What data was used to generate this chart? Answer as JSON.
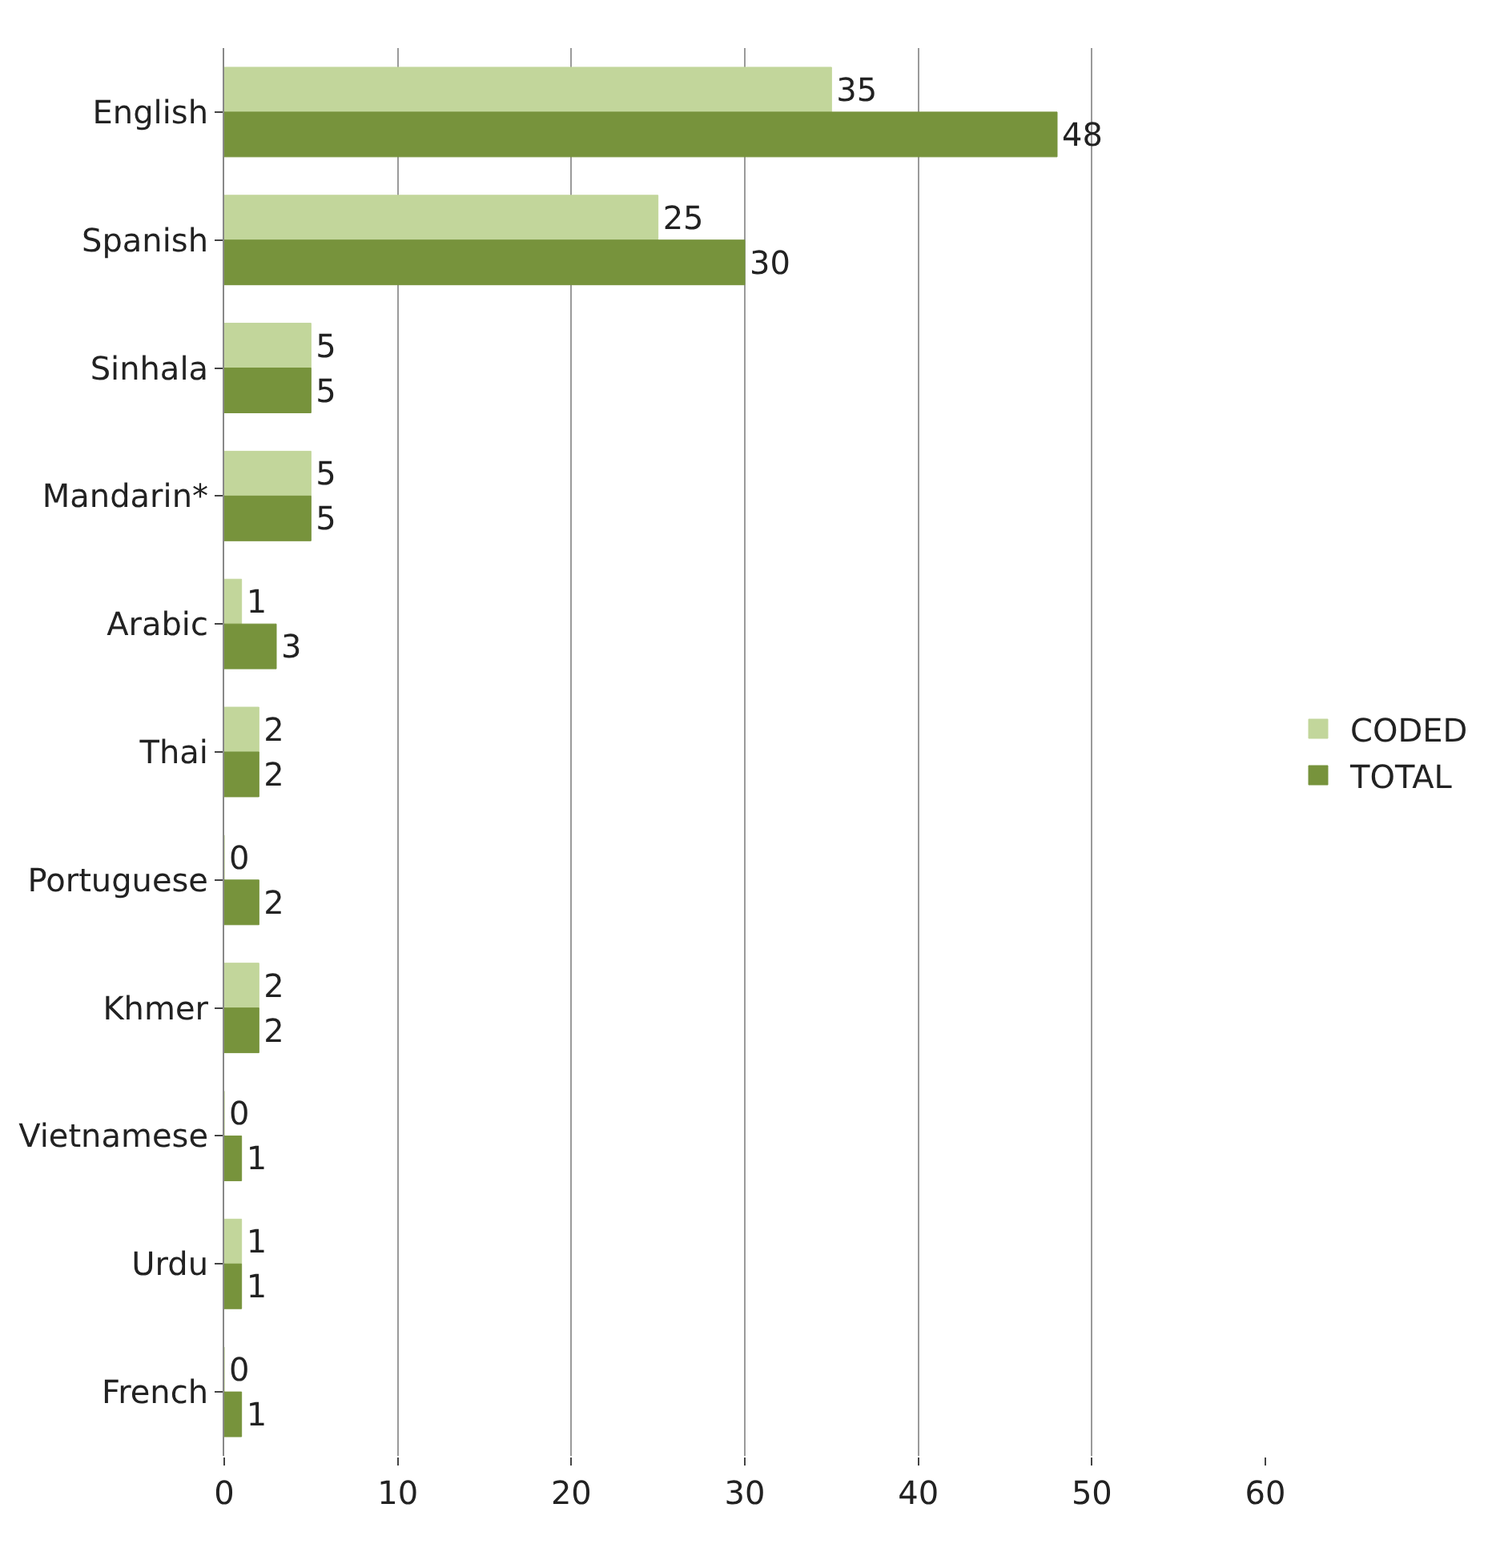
{
  "chart_data": {
    "type": "bar",
    "orientation": "horizontal",
    "categories": [
      "English",
      "Spanish",
      "Sinhala",
      "Mandarin*",
      "Arabic",
      "Thai",
      "Portuguese",
      "Khmer",
      "Vietnamese",
      "Urdu",
      "French"
    ],
    "series": [
      {
        "name": "CODED",
        "color": "#c2d69b",
        "values": [
          35,
          25,
          5,
          5,
          1,
          2,
          0,
          2,
          0,
          1,
          0
        ]
      },
      {
        "name": "TOTAL",
        "color": "#77933c",
        "values": [
          48,
          30,
          5,
          5,
          3,
          2,
          2,
          2,
          1,
          1,
          1
        ]
      }
    ],
    "xlim": [
      0,
      60
    ],
    "xticks": [
      0,
      10,
      20,
      30,
      40,
      50,
      60
    ],
    "grid": "x",
    "legend": "right",
    "data_labels": true
  }
}
